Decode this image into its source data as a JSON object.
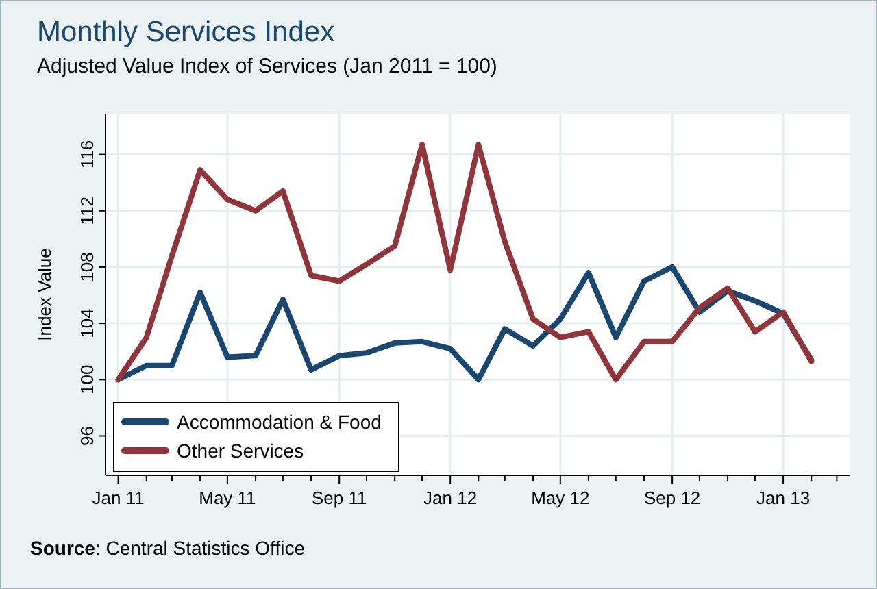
{
  "chart_data": {
    "type": "line",
    "title": "Monthly Services Index",
    "subtitle": "Adjusted Value Index of Services (Jan 2011 = 100)",
    "ylabel": "Index Value",
    "x": [
      "2011-01",
      "2011-02",
      "2011-03",
      "2011-04",
      "2011-05",
      "2011-06",
      "2011-07",
      "2011-08",
      "2011-09",
      "2011-10",
      "2011-11",
      "2011-12",
      "2012-01",
      "2012-02",
      "2012-03",
      "2012-04",
      "2012-05",
      "2012-06",
      "2012-07",
      "2012-08",
      "2012-09",
      "2012-10",
      "2012-11",
      "2012-12",
      "2013-01",
      "2013-02"
    ],
    "series": [
      {
        "name": "Accommodation & Food",
        "color": "#1a476f",
        "values": [
          100,
          101.0,
          101.0,
          106.2,
          101.6,
          101.7,
          105.7,
          100.7,
          101.7,
          101.9,
          102.6,
          102.7,
          102.2,
          100,
          103.6,
          102.4,
          104.3,
          107.6,
          103.0,
          107.0,
          108.0,
          104.8,
          106.3,
          105.6,
          104.7,
          101.4
        ]
      },
      {
        "name": "Other Services",
        "color": "#90353b",
        "values": [
          100,
          103.0,
          108.8,
          114.9,
          112.8,
          112.0,
          113.4,
          107.4,
          107.0,
          108.2,
          109.5,
          116.7,
          107.8,
          116.7,
          109.8,
          104.3,
          103.0,
          103.4,
          100,
          102.7,
          102.7,
          105.1,
          106.5,
          103.4,
          104.8,
          101.3
        ]
      }
    ],
    "xlim": [
      "2010-12-18",
      "2013-03-15"
    ],
    "xticks": [
      {
        "value": "2011-01",
        "label": "Jan 11"
      },
      {
        "value": "2011-02",
        "label": null
      },
      {
        "value": "2011-03",
        "label": null
      },
      {
        "value": "2011-04",
        "label": null
      },
      {
        "value": "2011-05",
        "label": "May 11"
      },
      {
        "value": "2011-06",
        "label": null
      },
      {
        "value": "2011-07",
        "label": null
      },
      {
        "value": "2011-08",
        "label": null
      },
      {
        "value": "2011-09",
        "label": "Sep 11"
      },
      {
        "value": "2011-10",
        "label": null
      },
      {
        "value": "2011-11",
        "label": null
      },
      {
        "value": "2011-12",
        "label": null
      },
      {
        "value": "2012-01",
        "label": "Jan 12"
      },
      {
        "value": "2012-02",
        "label": null
      },
      {
        "value": "2012-03",
        "label": null
      },
      {
        "value": "2012-04",
        "label": null
      },
      {
        "value": "2012-05",
        "label": "May 12"
      },
      {
        "value": "2012-06",
        "label": null
      },
      {
        "value": "2012-07",
        "label": null
      },
      {
        "value": "2012-08",
        "label": null
      },
      {
        "value": "2012-09",
        "label": "Sep 12"
      },
      {
        "value": "2012-10",
        "label": null
      },
      {
        "value": "2012-11",
        "label": null
      },
      {
        "value": "2012-12",
        "label": null
      },
      {
        "value": "2013-01",
        "label": "Jan 13"
      },
      {
        "value": "2013-02",
        "label": null
      },
      {
        "value": "2013-03",
        "label": null
      }
    ],
    "ylim": [
      93.2,
      118.9
    ],
    "yticks": [
      96,
      100,
      104,
      108,
      112,
      116
    ],
    "grid": true,
    "legend": "bottom left",
    "marker": "none",
    "line_style": "solid",
    "annotations": [
      "Source: Central Statistics Office"
    ]
  }
}
